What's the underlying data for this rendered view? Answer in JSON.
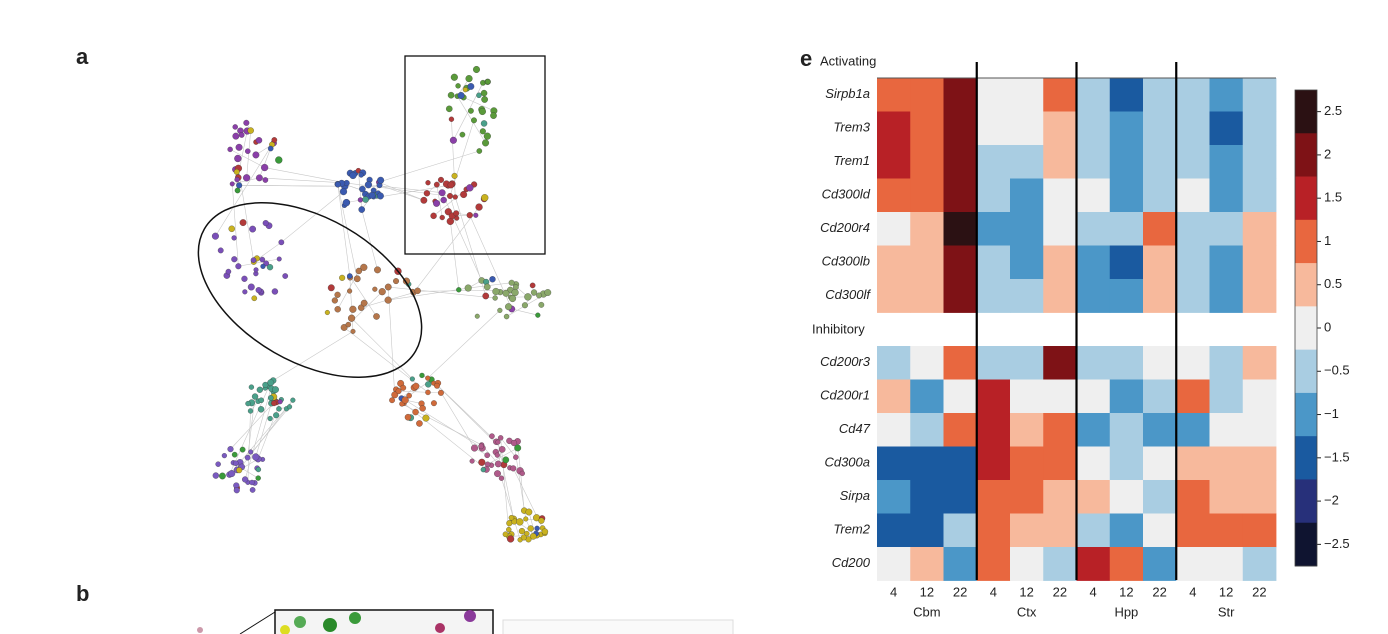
{
  "panel_labels": {
    "a": "a",
    "b": "b"
  },
  "chart_data": {
    "type": "heatmap",
    "panel_label": "e",
    "x_categories": [
      "4",
      "12",
      "22",
      "4",
      "12",
      "22",
      "4",
      "12",
      "22",
      "4",
      "12",
      "22"
    ],
    "groups": [
      "Cbm",
      "Ctx",
      "Hpp",
      "Str"
    ],
    "sections": [
      {
        "name": "Activating",
        "rows": [
          "Sirpb1a",
          "Trem3",
          "Trem1",
          "Cd300ld",
          "Cd200r4",
          "Cd300lb",
          "Cd300lf"
        ],
        "values": [
          [
            1,
            1,
            2,
            0,
            0,
            1,
            -0.5,
            -1.5,
            -0.5,
            -0.5,
            -1,
            -0.5
          ],
          [
            1.5,
            1,
            2,
            0,
            0,
            0.5,
            -0.5,
            -1,
            -0.5,
            -0.5,
            -1.5,
            -0.5
          ],
          [
            1.5,
            1,
            2,
            -0.5,
            -0.5,
            0.5,
            -0.5,
            -1,
            -0.5,
            -0.5,
            -1,
            -0.5
          ],
          [
            1,
            1,
            2,
            -0.5,
            -1,
            0,
            0,
            -1,
            -0.5,
            0,
            -1,
            -0.5
          ],
          [
            0,
            0.5,
            2.5,
            -1,
            -1,
            0,
            -0.5,
            -0.5,
            1,
            -0.5,
            -0.5,
            0.5
          ],
          [
            0.5,
            0.5,
            2,
            -0.5,
            -1,
            0.5,
            -1,
            -1.5,
            0.5,
            -0.5,
            -1,
            0.5
          ],
          [
            0.5,
            0.5,
            2,
            -0.5,
            -0.5,
            0.5,
            -1,
            -1,
            0.5,
            -0.5,
            -1,
            0.5
          ]
        ]
      },
      {
        "name": "Inhibitory",
        "rows": [
          "Cd200r3",
          "Cd200r1",
          "Cd47",
          "Cd300a",
          "Sirpa",
          "Trem2",
          "Cd200"
        ],
        "values": [
          [
            -0.5,
            0,
            1,
            -0.5,
            -0.5,
            2,
            -0.5,
            -0.5,
            0,
            0,
            -0.5,
            0.5
          ],
          [
            0.5,
            -1,
            0,
            1.5,
            0,
            0,
            0,
            -1,
            -0.5,
            1,
            -0.5,
            0
          ],
          [
            0,
            -0.5,
            1,
            1.5,
            0.5,
            1,
            -1,
            -0.5,
            -1,
            -1,
            0,
            0
          ],
          [
            -1.5,
            -1.5,
            -1.5,
            1.5,
            1,
            1,
            0,
            -0.5,
            0,
            0.5,
            0.5,
            0.5
          ],
          [
            -1,
            -1.5,
            -1.5,
            1,
            1,
            0.5,
            0.5,
            0,
            -0.5,
            1,
            0.5,
            0.5
          ],
          [
            -1.5,
            -1.5,
            -0.5,
            1,
            0.5,
            0.5,
            -0.5,
            -1,
            0,
            1,
            1,
            1
          ],
          [
            0,
            0.5,
            -1,
            1,
            0,
            -0.5,
            1.5,
            1,
            -1,
            0,
            0,
            -0.5
          ]
        ]
      }
    ],
    "colorbar": {
      "ticks": [
        2.5,
        2,
        1.5,
        1,
        0.5,
        0,
        {
          "value": -0.5,
          "label": "−0.5"
        },
        {
          "value": -1,
          "label": "−1"
        },
        {
          "value": -1.5,
          "label": "−1.5"
        },
        {
          "value": -2,
          "label": "−2"
        },
        {
          "value": -2.5,
          "label": "−2.5"
        }
      ],
      "colors": [
        "#2b1113",
        "#7e1216",
        "#b82126",
        "#e8673f",
        "#f7b99c",
        "#efefef",
        "#a9cde2",
        "#4b97c8",
        "#1a5aa0",
        "#27307a",
        "#0f1430"
      ]
    }
  }
}
